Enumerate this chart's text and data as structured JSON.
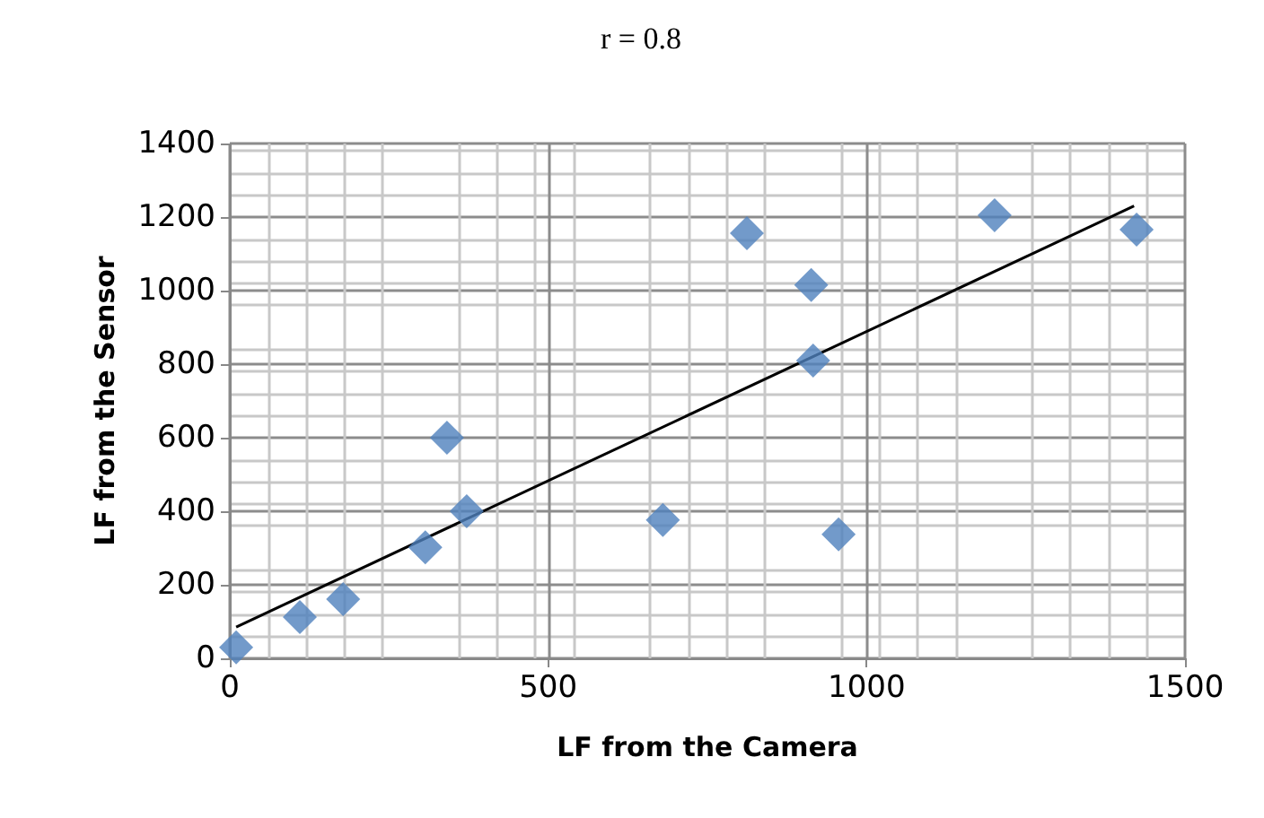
{
  "chart_data": {
    "type": "scatter",
    "title": "r = 0.8",
    "xlabel": "LF from the Camera",
    "ylabel": "LF from the Sensor",
    "xlim": [
      0,
      1500
    ],
    "xticks": [
      0,
      500,
      1000,
      1500
    ],
    "ylim": [
      0,
      1400
    ],
    "yticks": [
      0,
      200,
      400,
      600,
      800,
      1000,
      1200,
      1400
    ],
    "grid": true,
    "marker": "diamond",
    "series": [
      {
        "color": "#4f81bd",
        "x": [
          10,
          110,
          178,
          307,
          341,
          372,
          680,
          812,
          913,
          916,
          956,
          1201,
          1424
        ],
        "values": [
          30,
          112,
          161,
          302,
          600,
          400,
          376,
          1156,
          1015,
          810,
          337,
          1205,
          1166
        ]
      },
      {
        "type": "line",
        "color": "#000000",
        "marker": "none",
        "x": [
          10,
          1420
        ],
        "values": [
          85,
          1230
        ]
      }
    ]
  }
}
